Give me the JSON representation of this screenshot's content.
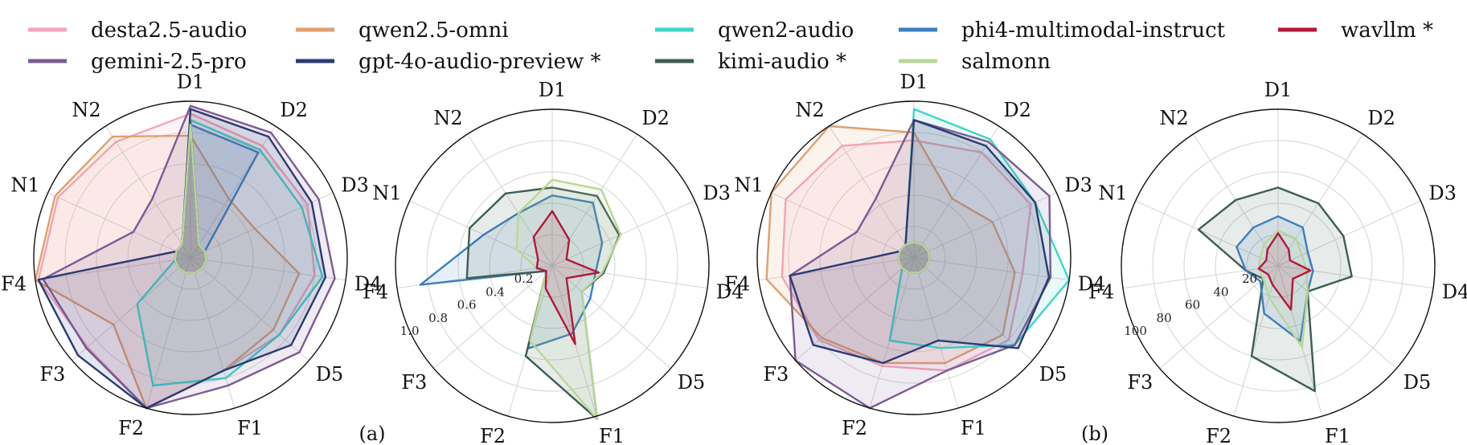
{
  "legend": [
    {
      "name": "desta2.5-audio",
      "color": "#f4a6bf"
    },
    {
      "name": "qwen2.5-omni",
      "color": "#e0a06e"
    },
    {
      "name": "qwen2-audio",
      "color": "#3ed6c8"
    },
    {
      "name": "phi4-multimodal-instruct",
      "color": "#3c7fbf"
    },
    {
      "name": "wavllm *",
      "color": "#b3173a"
    },
    {
      "name": "gemini-2.5-pro",
      "color": "#7b5c93"
    },
    {
      "name": "gpt-4o-audio-preview *",
      "color": "#2b3a73"
    },
    {
      "name": "kimi-audio *",
      "color": "#3d5e52"
    },
    {
      "name": "salmonn",
      "color": "#b8d896"
    }
  ],
  "panel_labels": [
    "(a)",
    "(b)"
  ],
  "chart_data": [
    {
      "type": "radar",
      "axes": [
        "D1",
        "D2",
        "D3",
        "D4",
        "D5",
        "F1",
        "F2",
        "F3",
        "F4",
        "N1",
        "N2"
      ],
      "rlim": [
        0,
        1.0
      ],
      "grid": true,
      "tick_labels": [],
      "series": [
        {
          "name": "desta2.5-audio",
          "color": "#f4a6bf",
          "values": [
            0.92,
            0.85,
            0.82,
            0.8,
            0.75,
            0.75,
            1.0,
            0.87,
            0.98,
            0.93,
            0.88
          ]
        },
        {
          "name": "qwen2.5-omni",
          "color": "#e0a06e",
          "values": [
            0.78,
            0.45,
            0.45,
            0.7,
            0.7,
            0.75,
            1.0,
            0.65,
            1.0,
            0.95,
            0.92
          ]
        },
        {
          "name": "qwen2-audio",
          "color": "#3ed6c8",
          "values": [
            0.88,
            0.82,
            0.78,
            0.85,
            0.75,
            0.8,
            0.85,
            0.45,
            0.1,
            0.1,
            0.1
          ]
        },
        {
          "name": "phi4-multimodal-instruct",
          "color": "#3c7fbf",
          "values": [
            0.85,
            0.8,
            0.1,
            0.1,
            0.1,
            0.1,
            0.1,
            0.1,
            0.1,
            0.1,
            0.1
          ]
        },
        {
          "name": "wavllm *",
          "color": "#b3173a",
          "values": [
            0.85,
            0.1,
            0.1,
            0.1,
            0.1,
            0.1,
            0.1,
            0.1,
            0.1,
            0.1,
            0.1
          ]
        },
        {
          "name": "gemini-2.5-pro",
          "color": "#7b5c93",
          "values": [
            0.97,
            0.95,
            0.9,
            0.93,
            0.92,
            0.85,
            1.0,
            0.88,
            0.95,
            0.4,
            0.45
          ]
        },
        {
          "name": "gpt-4o-audio-preview *",
          "color": "#2b3a73",
          "values": [
            0.95,
            0.92,
            0.85,
            0.87,
            0.85,
            0.75,
            1.0,
            0.95,
            0.98,
            0.1,
            0.1
          ]
        },
        {
          "name": "kimi-audio *",
          "color": "#3d5e52",
          "values": [
            0.87,
            0.1,
            0.1,
            0.1,
            0.1,
            0.1,
            0.1,
            0.1,
            0.1,
            0.1,
            0.1
          ]
        },
        {
          "name": "salmonn",
          "color": "#b8d896",
          "values": [
            0.85,
            0.1,
            0.1,
            0.1,
            0.1,
            0.1,
            0.1,
            0.1,
            0.1,
            0.1,
            0.1
          ]
        }
      ]
    },
    {
      "type": "radar",
      "axes": [
        "D1",
        "D2",
        "D3",
        "D4",
        "D5",
        "F1",
        "F2",
        "F3",
        "F4",
        "N1",
        "N2"
      ],
      "rlim": [
        0,
        1.0
      ],
      "grid": true,
      "tick_labels": [
        "0.2",
        "0.4",
        "0.6",
        "0.8",
        "1.0"
      ],
      "series": [
        {
          "name": "phi4-multimodal-instruct",
          "color": "#3c7fbf",
          "values": [
            0.45,
            0.48,
            0.35,
            0.28,
            0.32,
            0.45,
            0.55,
            0.05,
            0.85,
            0.48,
            0.4
          ]
        },
        {
          "name": "kimi-audio *",
          "color": "#3d5e52",
          "values": [
            0.5,
            0.53,
            0.47,
            0.33,
            0.25,
            1.02,
            0.6,
            0.05,
            0.55,
            0.58,
            0.55
          ]
        },
        {
          "name": "salmonn",
          "color": "#b8d896",
          "values": [
            0.55,
            0.58,
            0.48,
            0.32,
            0.25,
            1.02,
            0.5,
            0.05,
            0.1,
            0.25,
            0.4
          ]
        },
        {
          "name": "wavllm *",
          "color": "#b3173a",
          "values": [
            0.35,
            0.2,
            0.1,
            0.3,
            0.12,
            0.52,
            0.15,
            0.05,
            0.1,
            0.1,
            0.22
          ]
        }
      ]
    },
    {
      "type": "radar",
      "axes": [
        "D1",
        "D2",
        "D3",
        "D4",
        "D5",
        "F1",
        "F2",
        "F3",
        "F4",
        "N1",
        "N2"
      ],
      "rlim": [
        0,
        1.0
      ],
      "grid": true,
      "tick_labels": [],
      "series": [
        {
          "name": "desta2.5-audio",
          "color": "#f4a6bf",
          "values": [
            0.75,
            0.8,
            0.82,
            0.7,
            0.8,
            0.75,
            0.72,
            0.8,
            0.85,
            0.9,
            0.85
          ]
        },
        {
          "name": "qwen2.5-omni",
          "color": "#e0a06e",
          "values": [
            0.8,
            0.45,
            0.55,
            0.65,
            0.75,
            0.7,
            0.7,
            0.78,
            0.95,
            1.0,
            1.0
          ]
        },
        {
          "name": "qwen2-audio",
          "color": "#3ed6c8",
          "values": [
            0.95,
            0.9,
            0.85,
            1.0,
            0.85,
            0.6,
            0.55,
            0.1,
            0.1,
            0.1,
            0.1
          ]
        },
        {
          "name": "phi4-multimodal-instruct",
          "color": "#3c7fbf",
          "values": [
            0.1,
            0.1,
            0.1,
            0.1,
            0.1,
            0.1,
            0.1,
            0.1,
            0.1,
            0.1,
            0.1
          ]
        },
        {
          "name": "wavllm *",
          "color": "#b3173a",
          "values": [
            0.1,
            0.1,
            0.1,
            0.1,
            0.1,
            0.1,
            0.1,
            0.1,
            0.1,
            0.1,
            0.1
          ]
        },
        {
          "name": "gemini-2.5-pro",
          "color": "#7b5c93",
          "values": [
            0.88,
            0.88,
            0.95,
            0.88,
            0.85,
            0.75,
            1.0,
            1.0,
            0.8,
            0.4,
            0.45
          ]
        },
        {
          "name": "gpt-4o-audio-preview *",
          "color": "#2b3a73",
          "values": [
            0.88,
            0.85,
            0.85,
            0.87,
            0.88,
            0.55,
            0.7,
            0.85,
            0.8,
            0.1,
            0.1
          ]
        },
        {
          "name": "kimi-audio *",
          "color": "#3d5e52",
          "values": [
            0.1,
            0.1,
            0.1,
            0.1,
            0.1,
            0.1,
            0.1,
            0.1,
            0.1,
            0.1,
            0.1
          ]
        },
        {
          "name": "salmonn",
          "color": "#b8d896",
          "values": [
            0.1,
            0.1,
            0.1,
            0.1,
            0.1,
            0.1,
            0.1,
            0.1,
            0.1,
            0.1,
            0.1
          ]
        }
      ]
    },
    {
      "type": "radar",
      "axes": [
        "D1",
        "D2",
        "D3",
        "D4",
        "D5",
        "F1",
        "F2",
        "F3",
        "F4",
        "N1",
        "N2"
      ],
      "rlim": [
        0,
        120
      ],
      "grid": true,
      "tick_labels": [
        "20",
        "40",
        "60",
        "80",
        "100"
      ],
      "series": [
        {
          "name": "kimi-audio *",
          "color": "#3d5e52",
          "values": [
            60,
            57,
            55,
            57,
            30,
            100,
            72,
            15,
            25,
            67,
            60
          ]
        },
        {
          "name": "phi4-multimodal-instruct",
          "color": "#3c7fbf",
          "values": [
            38,
            35,
            25,
            27,
            30,
            60,
            38,
            18,
            25,
            35,
            35
          ]
        },
        {
          "name": "salmonn",
          "color": "#b8d896",
          "values": [
            27,
            25,
            20,
            22,
            30,
            65,
            25,
            15,
            15,
            15,
            20
          ]
        },
        {
          "name": "wavllm *",
          "color": "#b3173a",
          "values": [
            25,
            15,
            10,
            25,
            15,
            35,
            15,
            10,
            15,
            10,
            15
          ]
        }
      ]
    }
  ]
}
